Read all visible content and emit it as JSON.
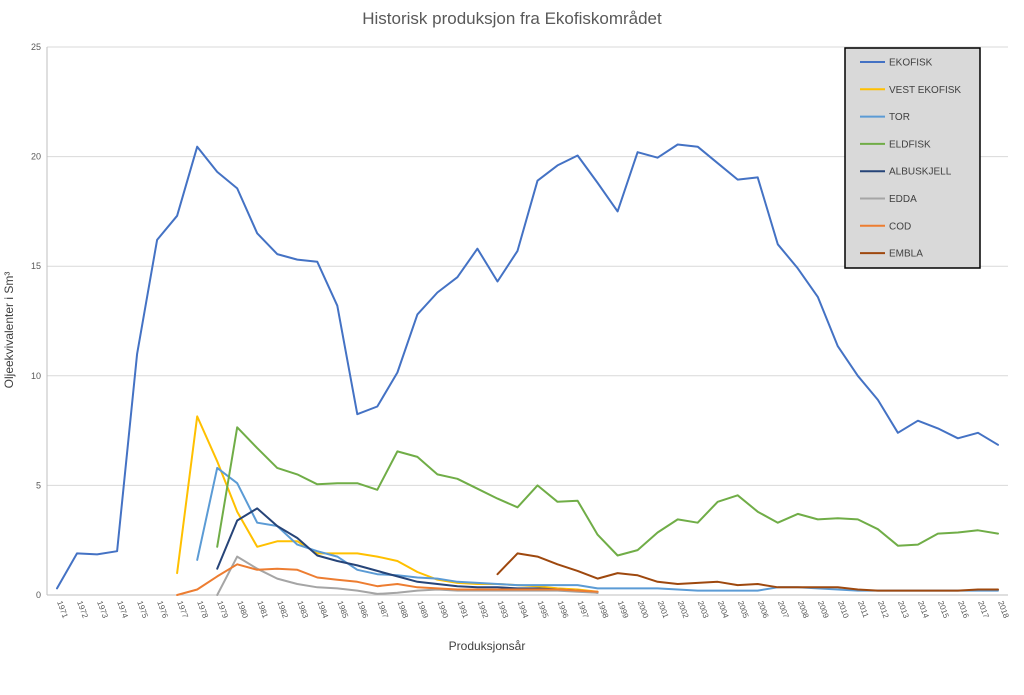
{
  "chart_data": {
    "type": "line",
    "title": "Historisk produksjon fra Ekofiskområdet",
    "xlabel": "Produksjonsår",
    "ylabel": "Oljeekvivalenter i Sm³",
    "ylim": [
      0,
      25
    ],
    "yticks": [
      0,
      5,
      10,
      15,
      20,
      25
    ],
    "grid": true,
    "legend_position": "top-right",
    "x": [
      1971,
      1972,
      1973,
      1974,
      1975,
      1976,
      1977,
      1978,
      1979,
      1980,
      1981,
      1982,
      1983,
      1984,
      1985,
      1986,
      1987,
      1988,
      1989,
      1990,
      1991,
      1992,
      1993,
      1994,
      1995,
      1996,
      1997,
      1998,
      1999,
      2000,
      2001,
      2002,
      2003,
      2004,
      2005,
      2006,
      2007,
      2008,
      2009,
      2010,
      2011,
      2012,
      2013,
      2014,
      2015,
      2016,
      2017,
      2018
    ],
    "series": [
      {
        "name": "EKOFISK",
        "color": "#4472C4",
        "values": [
          0.3,
          1.9,
          1.85,
          2.0,
          11.0,
          16.2,
          17.3,
          20.45,
          19.3,
          18.55,
          16.5,
          15.55,
          15.3,
          15.2,
          13.2,
          8.25,
          8.6,
          10.15,
          12.8,
          13.8,
          14.5,
          15.8,
          14.3,
          15.7,
          18.9,
          19.6,
          20.05,
          18.8,
          17.5,
          20.2,
          19.95,
          20.55,
          20.45,
          19.7,
          18.95,
          19.05,
          16.0,
          14.9,
          13.6,
          11.35,
          10.0,
          8.9,
          7.4,
          7.95,
          7.6,
          7.15,
          7.4,
          6.85
        ]
      },
      {
        "name": "VEST EKOFISK",
        "color": "#FFC000",
        "values": [
          null,
          null,
          null,
          null,
          null,
          null,
          1.0,
          8.15,
          6.1,
          3.8,
          2.2,
          2.45,
          2.45,
          1.9,
          1.9,
          1.9,
          1.75,
          1.55,
          1.05,
          0.7,
          0.55,
          0.5,
          0.5,
          0.45,
          0.4,
          0.3,
          0.25,
          0.15,
          null,
          null,
          null,
          null,
          null,
          null,
          null,
          null,
          null,
          null,
          null,
          null,
          null,
          null,
          null,
          null,
          null,
          null,
          null,
          null
        ]
      },
      {
        "name": "TOR",
        "color": "#5B9BD5",
        "values": [
          null,
          null,
          null,
          null,
          null,
          null,
          null,
          1.6,
          5.8,
          5.1,
          3.3,
          3.15,
          2.3,
          2.0,
          1.75,
          1.15,
          0.95,
          0.9,
          0.8,
          0.75,
          0.6,
          0.55,
          0.5,
          0.45,
          0.45,
          0.45,
          0.45,
          0.3,
          0.3,
          0.3,
          0.3,
          0.25,
          0.2,
          0.2,
          0.2,
          0.2,
          0.35,
          0.35,
          0.3,
          0.25,
          0.2,
          0.2,
          0.2,
          0.2,
          0.2,
          0.2,
          0.2,
          0.2
        ]
      },
      {
        "name": "ELDFISK",
        "color": "#70AD47",
        "values": [
          null,
          null,
          null,
          null,
          null,
          null,
          null,
          null,
          2.2,
          7.65,
          6.7,
          5.8,
          5.5,
          5.05,
          5.1,
          5.1,
          4.8,
          6.55,
          6.3,
          5.5,
          5.3,
          4.85,
          4.4,
          4.0,
          5.0,
          4.25,
          4.3,
          2.75,
          1.8,
          2.05,
          2.85,
          3.45,
          3.3,
          4.25,
          4.55,
          3.8,
          3.3,
          3.7,
          3.45,
          3.5,
          3.45,
          3.0,
          2.25,
          2.3,
          2.8,
          2.85,
          2.95,
          2.8
        ]
      },
      {
        "name": "ALBUSKJELL",
        "color": "#264478",
        "values": [
          null,
          null,
          null,
          null,
          null,
          null,
          null,
          null,
          1.2,
          3.4,
          3.95,
          3.15,
          2.6,
          1.8,
          1.55,
          1.35,
          1.1,
          0.85,
          0.6,
          0.5,
          0.4,
          0.35,
          0.35,
          0.3,
          0.3,
          0.25,
          0.2,
          0.1,
          null,
          null,
          null,
          null,
          null,
          null,
          null,
          null,
          null,
          null,
          null,
          null,
          null,
          null,
          null,
          null,
          null,
          null,
          null,
          null
        ]
      },
      {
        "name": "EDDA",
        "color": "#A5A5A5",
        "values": [
          null,
          null,
          null,
          null,
          null,
          null,
          null,
          null,
          0.0,
          1.75,
          1.2,
          0.75,
          0.5,
          0.35,
          0.3,
          0.2,
          0.05,
          0.1,
          0.2,
          0.25,
          0.2,
          0.2,
          0.2,
          0.2,
          0.2,
          0.2,
          0.15,
          0.1,
          null,
          null,
          null,
          null,
          null,
          null,
          null,
          null,
          null,
          null,
          null,
          null,
          null,
          null,
          null,
          null,
          null,
          null,
          null,
          null
        ]
      },
      {
        "name": "COD",
        "color": "#ED7D31",
        "values": [
          null,
          null,
          null,
          null,
          null,
          null,
          0.0,
          0.25,
          0.85,
          1.4,
          1.15,
          1.2,
          1.15,
          0.8,
          0.7,
          0.6,
          0.4,
          0.5,
          0.35,
          0.3,
          0.25,
          0.25,
          0.25,
          0.25,
          0.25,
          0.25,
          0.2,
          0.15,
          null,
          null,
          null,
          null,
          null,
          null,
          null,
          null,
          null,
          null,
          null,
          null,
          null,
          null,
          null,
          null,
          null,
          null,
          null,
          null
        ]
      },
      {
        "name": "EMBLA",
        "color": "#9E480E",
        "values": [
          null,
          null,
          null,
          null,
          null,
          null,
          null,
          null,
          null,
          null,
          null,
          null,
          null,
          null,
          null,
          null,
          null,
          null,
          null,
          null,
          null,
          null,
          0.95,
          1.9,
          1.75,
          1.4,
          1.1,
          0.75,
          1.0,
          0.9,
          0.6,
          0.5,
          0.55,
          0.6,
          0.45,
          0.5,
          0.35,
          0.35,
          0.35,
          0.35,
          0.25,
          0.2,
          0.2,
          0.2,
          0.2,
          0.2,
          0.25,
          0.25
        ]
      }
    ]
  }
}
